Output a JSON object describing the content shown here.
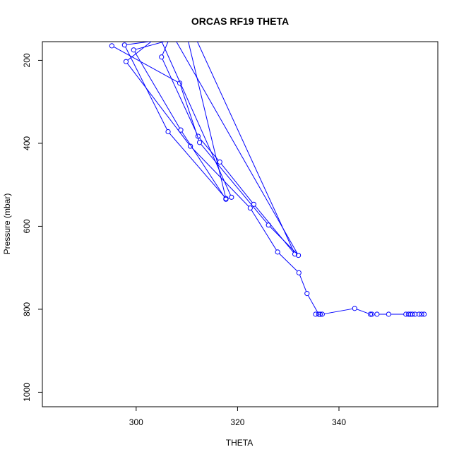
{
  "chart_data": {
    "type": "line",
    "title": "ORCAS RF19 THETA",
    "xlabel": "THETA",
    "ylabel": "Pressure (mbar)",
    "xlim": [
      281.5,
      359.5
    ],
    "ylim": [
      1035,
      155
    ],
    "y_reversed": true,
    "grid": false,
    "x_ticks": [
      300,
      320,
      340
    ],
    "y_ticks": [
      200,
      400,
      600,
      800,
      1000
    ],
    "series": [
      {
        "color": "#0000ff",
        "x": [
          295.2,
          308.6,
          312.5,
          326.1,
          332.0,
          307.0,
          305.0,
          312.2,
          316.5,
          323.2,
          331.3,
          311.5,
          297.7,
          306.3,
          317.7,
          310.0,
          299.5,
          308.8,
          317.7,
          318.8,
          304.5,
          298.0,
          310.7,
          322.5,
          327.9,
          332.1,
          333.7,
          336.0,
          336.3,
          335.4,
          336.7,
          343.1,
          346.2,
          346.5,
          347.5,
          349.8,
          353.2,
          353.7,
          354.1,
          354.5,
          355.0,
          355.8,
          356.3,
          356.8
        ],
        "y": [
          165,
          255,
          398,
          597,
          670,
          135,
          192,
          383,
          445,
          547,
          667,
          140,
          163,
          372,
          533,
          140,
          175,
          368,
          535,
          530,
          140,
          203,
          407,
          556,
          662,
          712,
          762,
          812,
          812,
          812,
          812,
          798,
          812,
          812,
          812,
          812,
          812,
          812,
          812,
          812,
          812,
          812,
          812,
          812
        ]
      }
    ]
  }
}
